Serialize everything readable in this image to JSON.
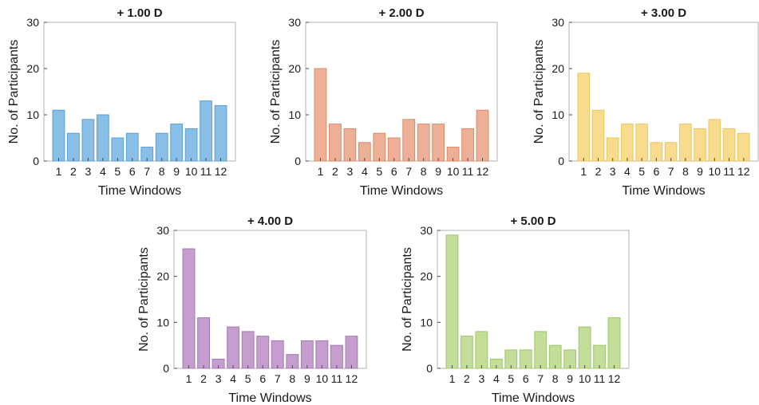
{
  "chart_data": [
    {
      "type": "bar",
      "title": "+ 1.00 D",
      "xlabel": "Time Windows",
      "ylabel": "No. of Participants",
      "categories": [
        "1",
        "2",
        "3",
        "4",
        "5",
        "6",
        "7",
        "8",
        "9",
        "10",
        "11",
        "12"
      ],
      "values": [
        11,
        6,
        9,
        10,
        5,
        6,
        3,
        6,
        8,
        7,
        13,
        12
      ],
      "ylim": [
        0,
        30
      ],
      "yticks": [
        "0",
        "10",
        "20",
        "30"
      ],
      "color": "#89bfe6",
      "edge_color": "#5b9fd4",
      "grid": false
    },
    {
      "type": "bar",
      "title": "+ 2.00 D",
      "xlabel": "Time Windows",
      "ylabel": "No. of Participants",
      "categories": [
        "1",
        "2",
        "3",
        "4",
        "5",
        "6",
        "7",
        "8",
        "9",
        "10",
        "11",
        "12"
      ],
      "values": [
        20,
        8,
        7,
        4,
        6,
        5,
        9,
        8,
        8,
        3,
        7,
        11
      ],
      "ylim": [
        0,
        30
      ],
      "yticks": [
        "0",
        "10",
        "20",
        "30"
      ],
      "color": "#edb096",
      "edge_color": "#dc8a66",
      "grid": false
    },
    {
      "type": "bar",
      "title": "+ 3.00 D",
      "xlabel": "Time Windows",
      "ylabel": "No. of Participants",
      "categories": [
        "1",
        "2",
        "3",
        "4",
        "5",
        "6",
        "7",
        "8",
        "9",
        "10",
        "11",
        "12"
      ],
      "values": [
        19,
        11,
        5,
        8,
        8,
        4,
        4,
        8,
        7,
        9,
        7,
        6
      ],
      "ylim": [
        0,
        30
      ],
      "yticks": [
        "0",
        "10",
        "20",
        "30"
      ],
      "color": "#f8dc8e",
      "edge_color": "#eec55f",
      "grid": false
    },
    {
      "type": "bar",
      "title": "+ 4.00 D",
      "xlabel": "Time Windows",
      "ylabel": "No. of Participants",
      "categories": [
        "1",
        "2",
        "3",
        "4",
        "5",
        "6",
        "7",
        "8",
        "9",
        "10",
        "11",
        "12"
      ],
      "values": [
        26,
        11,
        2,
        9,
        8,
        7,
        6,
        3,
        6,
        6,
        5,
        7
      ],
      "ylim": [
        0,
        30
      ],
      "yticks": [
        "0",
        "10",
        "20",
        "30"
      ],
      "color": "#c59ecf",
      "edge_color": "#a478b4",
      "grid": false
    },
    {
      "type": "bar",
      "title": "+ 5.00 D",
      "xlabel": "Time Windows",
      "ylabel": "No. of Participants",
      "categories": [
        "1",
        "2",
        "3",
        "4",
        "5",
        "6",
        "7",
        "8",
        "9",
        "10",
        "11",
        "12"
      ],
      "values": [
        29,
        7,
        8,
        2,
        4,
        4,
        8,
        5,
        4,
        9,
        5,
        11
      ],
      "ylim": [
        0,
        30
      ],
      "yticks": [
        "0",
        "10",
        "20",
        "30"
      ],
      "color": "#c3de98",
      "edge_color": "#9fc66a",
      "grid": false
    }
  ]
}
